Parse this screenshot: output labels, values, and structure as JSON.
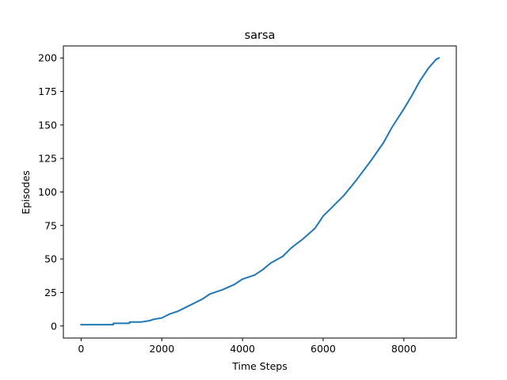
{
  "chart_data": {
    "type": "line",
    "title": "sarsa",
    "xlabel": "Time Steps",
    "ylabel": "Episodes",
    "xlim": [
      -440,
      9300
    ],
    "ylim": [
      -9,
      209
    ],
    "xticks": [
      0,
      2000,
      4000,
      6000,
      8000
    ],
    "yticks": [
      0,
      25,
      50,
      75,
      100,
      125,
      150,
      175,
      200
    ],
    "grid": false,
    "series": [
      {
        "color": "#1f77b4",
        "points": [
          [
            0,
            1
          ],
          [
            800,
            1
          ],
          [
            800,
            2
          ],
          [
            1200,
            2
          ],
          [
            1200,
            3
          ],
          [
            1500,
            3
          ],
          [
            1700,
            4
          ],
          [
            1800,
            5
          ],
          [
            2000,
            6
          ],
          [
            2200,
            9
          ],
          [
            2400,
            11
          ],
          [
            2600,
            14
          ],
          [
            2800,
            17
          ],
          [
            3000,
            20
          ],
          [
            3200,
            24
          ],
          [
            3500,
            27
          ],
          [
            3800,
            31
          ],
          [
            4000,
            35
          ],
          [
            4300,
            38
          ],
          [
            4500,
            42
          ],
          [
            4700,
            47
          ],
          [
            5000,
            52
          ],
          [
            5200,
            58
          ],
          [
            5500,
            65
          ],
          [
            5800,
            73
          ],
          [
            6000,
            82
          ],
          [
            6200,
            88
          ],
          [
            6500,
            97
          ],
          [
            6800,
            108
          ],
          [
            7000,
            116
          ],
          [
            7200,
            124
          ],
          [
            7500,
            137
          ],
          [
            7700,
            148
          ],
          [
            8000,
            162
          ],
          [
            8200,
            172
          ],
          [
            8400,
            183
          ],
          [
            8600,
            192
          ],
          [
            8800,
            199
          ],
          [
            8870,
            200
          ]
        ]
      }
    ]
  }
}
